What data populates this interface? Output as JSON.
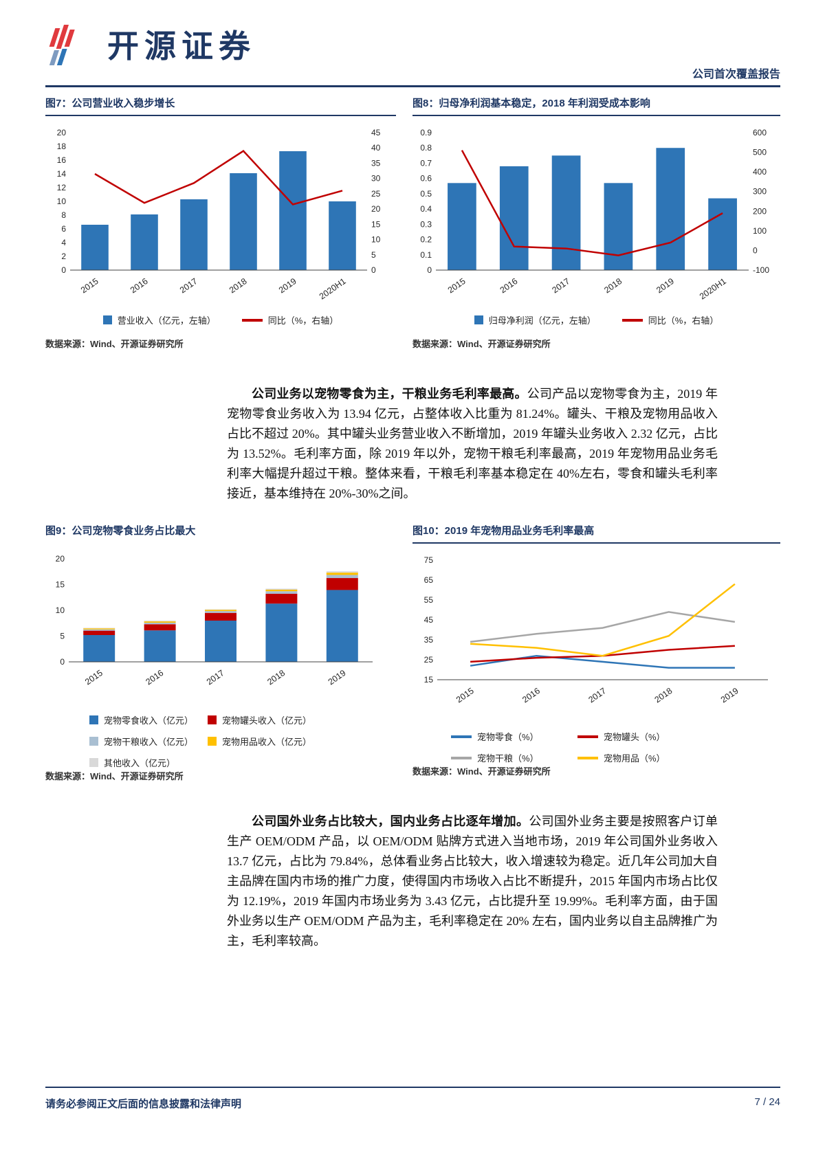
{
  "page": {
    "brand": "开源证券",
    "report_type": "公司首次覆盖报告",
    "footer_note": "请务必参阅正文后面的信息披露和法律声明",
    "page_number": "7 / 24"
  },
  "colors": {
    "navy": "#1F3864",
    "bar_blue": "#2E75B6",
    "line_red": "#C00000",
    "orange": "#FFC000",
    "gray": "#A6A6A6",
    "logo_red": "#E03A3E",
    "logo_blue": "#7E9BC0"
  },
  "paragraphs": [
    {
      "bold": "公司业务以宠物零食为主，干粮业务毛利率最高。",
      "text": "公司产品以宠物零食为主，2019 年宠物零食业务收入为 13.94 亿元，占整体收入比重为 81.24%。罐头、干粮及宠物用品收入占比不超过 20%。其中罐头业务营业收入不断增加，2019 年罐头业务收入 2.32 亿元，占比为 13.52%。毛利率方面，除 2019 年以外，宠物干粮毛利率最高，2019 年宠物用品业务毛利率大幅提升超过干粮。整体来看，干粮毛利率基本稳定在 40%左右，零食和罐头毛利率接近，基本维持在 20%-30%之间。"
    },
    {
      "bold": "公司国外业务占比较大，国内业务占比逐年增加。",
      "text": "公司国外业务主要是按照客户订单生产 OEM/ODM 产品，以 OEM/ODM 贴牌方式进入当地市场，2019 年公司国外业务收入 13.7 亿元，占比为 79.84%，总体看业务占比较大，收入增速较为稳定。近几年公司加大自主品牌在国内市场的推广力度，使得国内市场收入占比不断提升，2015 年国内市场占比仅为 12.19%，2019 年国内市场业务为 3.43 亿元，占比提升至 19.99%。毛利率方面，由于国外业务以生产 OEM/ODM 产品为主，毛利率稳定在 20% 左右，国内业务以自主品牌推广为主，毛利率较高。"
    }
  ],
  "chart_data": [
    {
      "id": "fig7",
      "type": "bar+line",
      "title": "图7：公司营业收入稳步增长",
      "source": "数据来源：Wind、开源证券研究所",
      "categories": [
        "2015",
        "2016",
        "2017",
        "2018",
        "2019",
        "2020H1"
      ],
      "bar_series": {
        "name": "营业收入（亿元，左轴）",
        "color": "#2E75B6",
        "axis": "left",
        "values": [
          6.6,
          8.1,
          10.3,
          14.1,
          17.3,
          10.0
        ]
      },
      "line_series": {
        "name": "同比（%，右轴）",
        "color": "#C00000",
        "axis": "right",
        "values": [
          31.5,
          22,
          28.5,
          39,
          21.5,
          26
        ]
      },
      "left_axis": {
        "min": 0,
        "max": 20,
        "step": 2
      },
      "right_axis": {
        "min": 0,
        "max": 45,
        "step": 5
      },
      "grid": false,
      "legend_position": "bottom"
    },
    {
      "id": "fig8",
      "type": "bar+line",
      "title": "图8：归母净利润基本稳定，2018 年利润受成本影响",
      "source": "数据来源：Wind、开源证券研究所",
      "categories": [
        "2015",
        "2016",
        "2017",
        "2018",
        "2019",
        "2020H1"
      ],
      "bar_series": {
        "name": "归母净利润（亿元，左轴）",
        "color": "#2E75B6",
        "axis": "left",
        "values": [
          0.57,
          0.68,
          0.75,
          0.57,
          0.8,
          0.47
        ]
      },
      "line_series": {
        "name": "同比（%，右轴）",
        "color": "#C00000",
        "axis": "right",
        "values": [
          510,
          20,
          10,
          -25,
          40,
          190
        ]
      },
      "left_axis": {
        "min": 0,
        "max": 0.9,
        "step": 0.1
      },
      "right_axis": {
        "min": -100,
        "max": 600,
        "step": 100
      },
      "grid": false,
      "legend_position": "bottom"
    },
    {
      "id": "fig9",
      "type": "stacked-bar",
      "title": "图9：公司宠物零食业务占比最大",
      "source": "数据来源：Wind、开源证券研究所",
      "categories": [
        "2015",
        "2016",
        "2017",
        "2018",
        "2019"
      ],
      "series": [
        {
          "name": "宠物零食收入（亿元）",
          "color": "#2E75B6",
          "values": [
            5.2,
            6.1,
            8.0,
            11.3,
            13.94
          ]
        },
        {
          "name": "宠物罐头收入（亿元）",
          "color": "#C00000",
          "values": [
            0.85,
            1.2,
            1.5,
            1.9,
            2.32
          ]
        },
        {
          "name": "宠物干粮收入（亿元）",
          "color": "#A9BFD2",
          "values": [
            0.25,
            0.3,
            0.35,
            0.5,
            0.6
          ]
        },
        {
          "name": "宠物用品收入（亿元）",
          "color": "#FFC000",
          "values": [
            0.2,
            0.25,
            0.25,
            0.3,
            0.45
          ]
        },
        {
          "name": "其他收入（亿元）",
          "color": "#D9D9D9",
          "values": [
            0.1,
            0.15,
            0.1,
            0.2,
            0.25
          ]
        }
      ],
      "y_axis": {
        "min": 0,
        "max": 20,
        "step": 5
      },
      "grid": false,
      "legend_position": "bottom"
    },
    {
      "id": "fig10",
      "type": "line",
      "title": "图10：2019 年宠物用品业务毛利率最高",
      "source": "数据来源：Wind、开源证券研究所",
      "categories": [
        "2015",
        "2016",
        "2017",
        "2018",
        "2019"
      ],
      "series": [
        {
          "name": "宠物零食（%）",
          "color": "#2E75B6",
          "values": [
            22,
            27,
            24,
            21,
            21
          ]
        },
        {
          "name": "宠物罐头（%）",
          "color": "#C00000",
          "values": [
            24,
            26,
            27,
            30,
            32
          ]
        },
        {
          "name": "宠物干粮（%）",
          "color": "#A6A6A6",
          "values": [
            34,
            38,
            41,
            49,
            44
          ]
        },
        {
          "name": "宠物用品（%）",
          "color": "#FFC000",
          "values": [
            33,
            31,
            27,
            37,
            63
          ]
        }
      ],
      "y_axis": {
        "min": 15,
        "max": 75,
        "step": 10
      },
      "grid": false,
      "legend_position": "bottom"
    }
  ]
}
